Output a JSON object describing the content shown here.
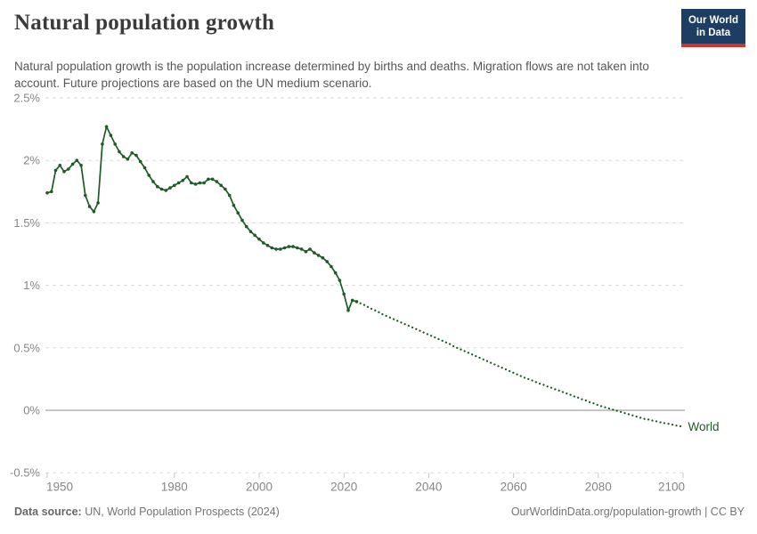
{
  "header": {
    "title": "Natural population growth",
    "subtitle": "Natural population growth is the population increase determined by births and deaths. Migration flows are not taken into account. Future projections are based on the UN medium scenario.",
    "logo": {
      "line1": "Our World",
      "line2": "in Data"
    }
  },
  "footer": {
    "source_label": "Data source:",
    "source_rest": " UN, World Population Prospects (2024)",
    "link_text": "OurWorldinData.org/population-growth | CC BY"
  },
  "colors": {
    "line": "#1E5C26",
    "logo_bg": "#1d3d63",
    "logo_red": "#d0352b",
    "grid": "#dadada",
    "zero_line": "#a3a3a3",
    "tick": "#c4c4c4",
    "axis_text": "#868686",
    "title_text": "#3b3b3b",
    "subtitle_text": "#575757",
    "footer_text": "#747474"
  },
  "chart_data": {
    "type": "line",
    "title": "Natural population growth",
    "subtitle": "Natural population growth is the population increase determined by births and deaths. Migration flows are not taken into account. Future projections are based on the UN medium scenario.",
    "unit": "%",
    "xlim": [
      1950,
      2100
    ],
    "ylim": [
      -0.5,
      2.5
    ],
    "grid": true,
    "x_ticks": [
      1950,
      1980,
      2000,
      2020,
      2040,
      2060,
      2080,
      2100
    ],
    "x_tick_labels": [
      "1950",
      "1980",
      "2000",
      "2020",
      "2040",
      "2060",
      "2080",
      "2100"
    ],
    "y_ticks": [
      -0.5,
      0,
      0.5,
      1,
      1.5,
      2,
      2.5
    ],
    "y_tick_labels": [
      "-0.5%",
      "0%",
      "0.5%",
      "1%",
      "1.5%",
      "2%",
      "2.5%"
    ],
    "end_label": "World",
    "series": [
      {
        "name": "World — estimates",
        "style": "solid",
        "points": [
          [
            1950,
            1.74
          ],
          [
            1951,
            1.75
          ],
          [
            1952,
            1.92
          ],
          [
            1953,
            1.96
          ],
          [
            1954,
            1.91
          ],
          [
            1955,
            1.93
          ],
          [
            1956,
            1.97
          ],
          [
            1957,
            2.0
          ],
          [
            1958,
            1.96
          ],
          [
            1959,
            1.72
          ],
          [
            1960,
            1.63
          ],
          [
            1961,
            1.59
          ],
          [
            1962,
            1.66
          ],
          [
            1963,
            2.13
          ],
          [
            1964,
            2.27
          ],
          [
            1965,
            2.2
          ],
          [
            1966,
            2.13
          ],
          [
            1967,
            2.07
          ],
          [
            1968,
            2.03
          ],
          [
            1969,
            2.01
          ],
          [
            1970,
            2.06
          ],
          [
            1971,
            2.04
          ],
          [
            1972,
            1.99
          ],
          [
            1973,
            1.94
          ],
          [
            1974,
            1.88
          ],
          [
            1975,
            1.83
          ],
          [
            1976,
            1.79
          ],
          [
            1977,
            1.77
          ],
          [
            1978,
            1.76
          ],
          [
            1979,
            1.78
          ],
          [
            1980,
            1.8
          ],
          [
            1981,
            1.82
          ],
          [
            1982,
            1.84
          ],
          [
            1983,
            1.87
          ],
          [
            1984,
            1.82
          ],
          [
            1985,
            1.81
          ],
          [
            1986,
            1.82
          ],
          [
            1987,
            1.82
          ],
          [
            1988,
            1.85
          ],
          [
            1989,
            1.85
          ],
          [
            1990,
            1.83
          ],
          [
            1991,
            1.8
          ],
          [
            1992,
            1.77
          ],
          [
            1993,
            1.72
          ],
          [
            1994,
            1.64
          ],
          [
            1995,
            1.58
          ],
          [
            1996,
            1.52
          ],
          [
            1997,
            1.47
          ],
          [
            1998,
            1.43
          ],
          [
            1999,
            1.4
          ],
          [
            2000,
            1.37
          ],
          [
            2001,
            1.34
          ],
          [
            2002,
            1.32
          ],
          [
            2003,
            1.3
          ],
          [
            2004,
            1.29
          ],
          [
            2005,
            1.29
          ],
          [
            2006,
            1.3
          ],
          [
            2007,
            1.31
          ],
          [
            2008,
            1.31
          ],
          [
            2009,
            1.3
          ],
          [
            2010,
            1.29
          ],
          [
            2011,
            1.27
          ],
          [
            2012,
            1.29
          ],
          [
            2013,
            1.26
          ],
          [
            2014,
            1.24
          ],
          [
            2015,
            1.22
          ],
          [
            2016,
            1.19
          ],
          [
            2017,
            1.15
          ],
          [
            2018,
            1.1
          ],
          [
            2019,
            1.04
          ],
          [
            2020,
            0.93
          ],
          [
            2021,
            0.8
          ],
          [
            2022,
            0.88
          ],
          [
            2023,
            0.87
          ]
        ]
      },
      {
        "name": "World — UN medium projection",
        "style": "dotted",
        "points": [
          [
            2023,
            0.87
          ],
          [
            2024,
            0.855
          ],
          [
            2025,
            0.84
          ],
          [
            2026,
            0.82
          ],
          [
            2027,
            0.805
          ],
          [
            2028,
            0.79
          ],
          [
            2029,
            0.77
          ],
          [
            2030,
            0.755
          ],
          [
            2031,
            0.74
          ],
          [
            2032,
            0.725
          ],
          [
            2033,
            0.71
          ],
          [
            2034,
            0.695
          ],
          [
            2035,
            0.68
          ],
          [
            2036,
            0.665
          ],
          [
            2037,
            0.65
          ],
          [
            2038,
            0.635
          ],
          [
            2039,
            0.62
          ],
          [
            2040,
            0.605
          ],
          [
            2041,
            0.59
          ],
          [
            2042,
            0.575
          ],
          [
            2043,
            0.56
          ],
          [
            2044,
            0.545
          ],
          [
            2045,
            0.53
          ],
          [
            2046,
            0.51
          ],
          [
            2047,
            0.495
          ],
          [
            2048,
            0.48
          ],
          [
            2049,
            0.465
          ],
          [
            2050,
            0.45
          ],
          [
            2051,
            0.435
          ],
          [
            2052,
            0.42
          ],
          [
            2053,
            0.405
          ],
          [
            2054,
            0.39
          ],
          [
            2055,
            0.375
          ],
          [
            2056,
            0.36
          ],
          [
            2057,
            0.345
          ],
          [
            2058,
            0.33
          ],
          [
            2059,
            0.315
          ],
          [
            2060,
            0.3
          ],
          [
            2061,
            0.285
          ],
          [
            2062,
            0.27
          ],
          [
            2063,
            0.255
          ],
          [
            2064,
            0.245
          ],
          [
            2065,
            0.23
          ],
          [
            2066,
            0.215
          ],
          [
            2067,
            0.205
          ],
          [
            2068,
            0.19
          ],
          [
            2069,
            0.18
          ],
          [
            2070,
            0.165
          ],
          [
            2071,
            0.155
          ],
          [
            2072,
            0.14
          ],
          [
            2073,
            0.13
          ],
          [
            2074,
            0.115
          ],
          [
            2075,
            0.105
          ],
          [
            2076,
            0.09
          ],
          [
            2077,
            0.08
          ],
          [
            2078,
            0.065
          ],
          [
            2079,
            0.055
          ],
          [
            2080,
            0.04
          ],
          [
            2081,
            0.03
          ],
          [
            2082,
            0.02
          ],
          [
            2083,
            0.01
          ],
          [
            2084,
            0.0
          ],
          [
            2085,
            -0.01
          ],
          [
            2086,
            -0.02
          ],
          [
            2087,
            -0.03
          ],
          [
            2088,
            -0.04
          ],
          [
            2089,
            -0.05
          ],
          [
            2090,
            -0.06
          ],
          [
            2091,
            -0.07
          ],
          [
            2092,
            -0.075
          ],
          [
            2093,
            -0.085
          ],
          [
            2094,
            -0.09
          ],
          [
            2095,
            -0.1
          ],
          [
            2096,
            -0.105
          ],
          [
            2097,
            -0.11
          ],
          [
            2098,
            -0.12
          ],
          [
            2099,
            -0.125
          ],
          [
            2100,
            -0.13
          ]
        ]
      }
    ]
  }
}
